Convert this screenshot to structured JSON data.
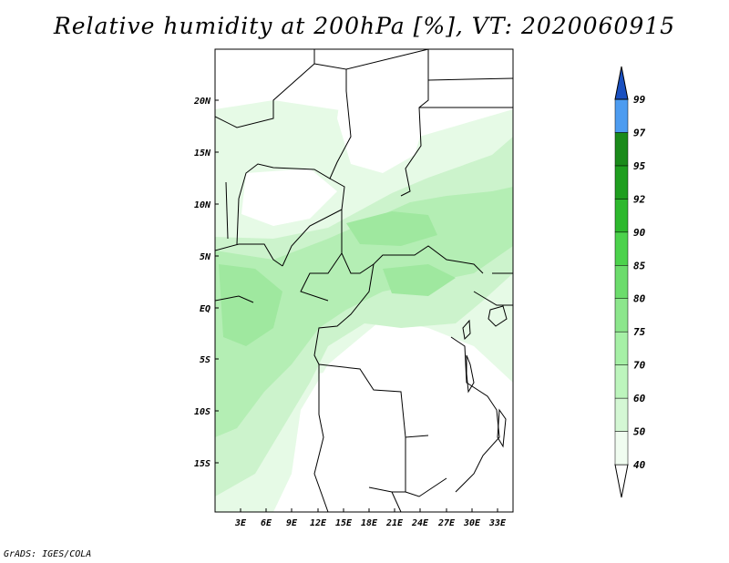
{
  "title": "Relative humidity at 200hPa [%], VT: 2020060915",
  "credit": "GrADS: IGES/COLA",
  "map": {
    "lat_labels": [
      "20N",
      "15N",
      "10N",
      "5N",
      "EQ",
      "5S",
      "10S",
      "15S"
    ],
    "lon_labels": [
      "3E",
      "6E",
      "9E",
      "12E",
      "15E",
      "18E",
      "21E",
      "24E",
      "27E",
      "30E",
      "33E"
    ]
  },
  "colorbar": {
    "levels": [
      "40",
      "50",
      "60",
      "70",
      "75",
      "80",
      "85",
      "90",
      "92",
      "95",
      "97",
      "99"
    ],
    "colors": [
      "#f0fcf0",
      "#d4f7d4",
      "#bdf5bd",
      "#a6f0a6",
      "#8ce68c",
      "#6cdc6c",
      "#4cd24c",
      "#2db82d",
      "#1f9e1f",
      "#1a8a1a",
      "#4d9cf0",
      "#2a72e0",
      "#1a50c0"
    ]
  }
}
